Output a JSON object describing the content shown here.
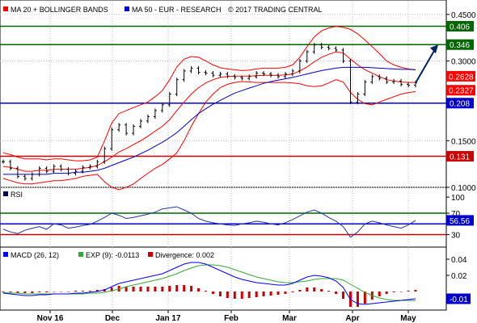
{
  "legend_main": {
    "item1": "MA 20 + BOLLINGER BANDS",
    "item2": "MA 50 - EUR - RESEARCH",
    "copyright": "© 2017 TRADING CENTRAL"
  },
  "legend_rsi": {
    "label": "RSI"
  },
  "legend_macd": {
    "macd": "MACD (26, 12)",
    "exp": "EXP (9): -0.0113",
    "div": "Divergence: 0.002"
  },
  "colors": {
    "price": "#000000",
    "bollinger": "#ff0000",
    "ma50": "#0000cc",
    "resistance": "#006600",
    "pivot": "#0000cc",
    "support": "#cc0000",
    "rsi": "#2233aa",
    "macd": "#0000ff",
    "exp": "#33aa33",
    "divergence": "#cc0000",
    "arrow": "#002266"
  },
  "chart_data": {
    "type": "line",
    "x_labels": [
      "Nov 16",
      "Dec",
      "Jan 17",
      "Feb",
      "Mar",
      "Apr",
      "May"
    ],
    "price_panel": {
      "y_ticks": [
        "0.4500",
        "0.3000",
        "0.1500",
        "0.1000"
      ],
      "levels": [
        {
          "value": 0.406,
          "label": "0.406",
          "role": "resistance"
        },
        {
          "value": 0.346,
          "label": "0.346",
          "role": "resistance"
        },
        {
          "value": 0.208,
          "label": "0.208",
          "role": "pivot"
        },
        {
          "value": 0.131,
          "label": "0.131",
          "role": "support"
        }
      ],
      "current_labels": [
        {
          "value": 0.2628,
          "label": "0.2628"
        },
        {
          "value": 0.2327,
          "label": "0.2327"
        }
      ],
      "price": [
        0.125,
        0.118,
        0.11,
        0.108,
        0.112,
        0.118,
        0.115,
        0.12,
        0.117,
        0.113,
        0.115,
        0.119,
        0.12,
        0.125,
        0.14,
        0.165,
        0.172,
        0.16,
        0.17,
        0.178,
        0.185,
        0.195,
        0.205,
        0.225,
        0.255,
        0.275,
        0.282,
        0.272,
        0.27,
        0.265,
        0.268,
        0.263,
        0.26,
        0.258,
        0.262,
        0.27,
        0.268,
        0.265,
        0.262,
        0.268,
        0.275,
        0.3,
        0.325,
        0.345,
        0.338,
        0.335,
        0.33,
        0.3,
        0.21,
        0.225,
        0.25,
        0.262,
        0.258,
        0.25,
        0.252,
        0.245,
        0.243,
        0.248
      ],
      "ma20_mid": [
        0.12,
        0.119,
        0.117,
        0.115,
        0.115,
        0.116,
        0.116,
        0.117,
        0.117,
        0.117,
        0.117,
        0.118,
        0.119,
        0.121,
        0.125,
        0.13,
        0.136,
        0.14,
        0.145,
        0.15,
        0.156,
        0.163,
        0.17,
        0.18,
        0.195,
        0.21,
        0.225,
        0.238,
        0.248,
        0.255,
        0.26,
        0.262,
        0.263,
        0.263,
        0.263,
        0.264,
        0.265,
        0.265,
        0.265,
        0.266,
        0.268,
        0.275,
        0.285,
        0.298,
        0.31,
        0.318,
        0.325,
        0.322,
        0.305,
        0.29,
        0.278,
        0.27,
        0.262,
        0.255,
        0.252,
        0.25,
        0.249,
        0.249
      ],
      "boll_upper": [
        0.135,
        0.133,
        0.13,
        0.128,
        0.128,
        0.128,
        0.127,
        0.128,
        0.128,
        0.127,
        0.126,
        0.126,
        0.127,
        0.13,
        0.15,
        0.175,
        0.19,
        0.195,
        0.2,
        0.205,
        0.21,
        0.22,
        0.232,
        0.255,
        0.285,
        0.305,
        0.312,
        0.31,
        0.3,
        0.29,
        0.283,
        0.28,
        0.278,
        0.276,
        0.277,
        0.28,
        0.282,
        0.282,
        0.282,
        0.284,
        0.29,
        0.31,
        0.34,
        0.37,
        0.39,
        0.4,
        0.405,
        0.402,
        0.395,
        0.38,
        0.36,
        0.34,
        0.32,
        0.3,
        0.29,
        0.284,
        0.28,
        0.278
      ],
      "boll_lower": [
        0.108,
        0.106,
        0.104,
        0.103,
        0.103,
        0.104,
        0.105,
        0.106,
        0.106,
        0.107,
        0.108,
        0.11,
        0.111,
        0.112,
        0.105,
        0.1,
        0.098,
        0.1,
        0.103,
        0.108,
        0.113,
        0.118,
        0.122,
        0.128,
        0.135,
        0.15,
        0.17,
        0.19,
        0.21,
        0.225,
        0.238,
        0.245,
        0.249,
        0.251,
        0.25,
        0.249,
        0.249,
        0.249,
        0.249,
        0.249,
        0.248,
        0.246,
        0.242,
        0.24,
        0.242,
        0.248,
        0.255,
        0.25,
        0.228,
        0.215,
        0.207,
        0.205,
        0.21,
        0.215,
        0.22,
        0.225,
        0.228,
        0.23
      ],
      "ma50": [
        0.112,
        0.112,
        0.112,
        0.112,
        0.112,
        0.112,
        0.112,
        0.113,
        0.113,
        0.113,
        0.114,
        0.114,
        0.115,
        0.116,
        0.118,
        0.121,
        0.124,
        0.127,
        0.13,
        0.134,
        0.138,
        0.143,
        0.148,
        0.154,
        0.161,
        0.17,
        0.18,
        0.19,
        0.198,
        0.206,
        0.213,
        0.22,
        0.227,
        0.232,
        0.237,
        0.242,
        0.247,
        0.251,
        0.254,
        0.257,
        0.26,
        0.264,
        0.268,
        0.272,
        0.276,
        0.279,
        0.282,
        0.284,
        0.284,
        0.284,
        0.284,
        0.283,
        0.282,
        0.281,
        0.28,
        0.279,
        0.279,
        0.278
      ]
    },
    "rsi_panel": {
      "y_ticks": [
        "100",
        "70",
        "30"
      ],
      "overbought": 70,
      "oversold": 30,
      "mid_line": 50,
      "current_label": "56.56",
      "values": [
        40,
        35,
        32,
        38,
        42,
        45,
        40,
        50,
        48,
        42,
        44,
        47,
        49,
        55,
        62,
        70,
        66,
        60,
        62,
        65,
        68,
        72,
        78,
        80,
        82,
        76,
        70,
        60,
        55,
        52,
        50,
        48,
        47,
        50,
        52,
        55,
        53,
        50,
        48,
        52,
        58,
        65,
        72,
        76,
        70,
        62,
        55,
        45,
        25,
        35,
        50,
        55,
        52,
        48,
        45,
        42,
        48,
        56.56
      ]
    },
    "macd_panel": {
      "y_ticks": [
        "0.04",
        "0.02"
      ],
      "current_label": "-0.01",
      "macd": [
        -0.002,
        -0.003,
        -0.004,
        -0.005,
        -0.005,
        -0.004,
        -0.004,
        -0.003,
        -0.003,
        -0.003,
        -0.002,
        -0.002,
        -0.001,
        0.0,
        0.002,
        0.006,
        0.01,
        0.012,
        0.014,
        0.016,
        0.018,
        0.02,
        0.022,
        0.026,
        0.03,
        0.034,
        0.036,
        0.036,
        0.034,
        0.03,
        0.026,
        0.022,
        0.018,
        0.015,
        0.013,
        0.011,
        0.01,
        0.009,
        0.008,
        0.008,
        0.01,
        0.014,
        0.018,
        0.02,
        0.019,
        0.017,
        0.013,
        0.005,
        -0.01,
        -0.015,
        -0.016,
        -0.015,
        -0.014,
        -0.013,
        -0.012,
        -0.011,
        -0.01,
        -0.009
      ],
      "exp": [
        -0.001,
        -0.002,
        -0.002,
        -0.003,
        -0.003,
        -0.003,
        -0.003,
        -0.003,
        -0.003,
        -0.003,
        -0.003,
        -0.003,
        -0.002,
        -0.002,
        -0.001,
        0.001,
        0.003,
        0.006,
        0.008,
        0.01,
        0.012,
        0.014,
        0.016,
        0.019,
        0.022,
        0.026,
        0.029,
        0.032,
        0.033,
        0.033,
        0.032,
        0.03,
        0.027,
        0.024,
        0.021,
        0.018,
        0.016,
        0.014,
        0.012,
        0.011,
        0.011,
        0.012,
        0.013,
        0.015,
        0.016,
        0.016,
        0.016,
        0.014,
        0.009,
        0.004,
        -0.001,
        -0.005,
        -0.008,
        -0.01,
        -0.011,
        -0.011,
        -0.011,
        -0.0113
      ],
      "divergence": [
        -0.001,
        -0.001,
        -0.002,
        -0.002,
        -0.002,
        -0.001,
        -0.001,
        0.0,
        0.0,
        0.0,
        0.001,
        0.001,
        0.001,
        0.002,
        0.003,
        0.005,
        0.007,
        0.006,
        0.006,
        0.006,
        0.006,
        0.006,
        0.006,
        0.007,
        0.008,
        0.008,
        0.007,
        0.004,
        0.001,
        -0.003,
        -0.006,
        -0.008,
        -0.009,
        -0.009,
        -0.008,
        -0.007,
        -0.006,
        -0.005,
        -0.004,
        -0.003,
        -0.001,
        0.002,
        0.005,
        0.005,
        0.003,
        0.001,
        -0.003,
        -0.009,
        -0.019,
        -0.019,
        -0.015,
        -0.01,
        -0.006,
        -0.003,
        -0.001,
        0.0,
        0.001,
        0.002
      ]
    }
  }
}
